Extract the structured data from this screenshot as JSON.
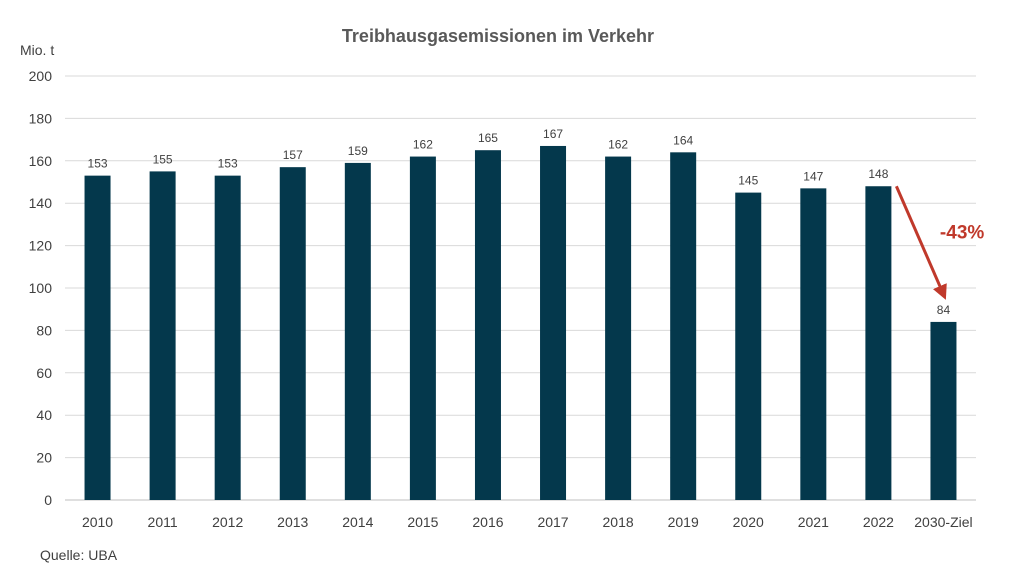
{
  "chart_data": {
    "type": "bar",
    "title": "Treibhausgasemissionen im Verkehr",
    "ylabel": "Mio. t",
    "xlabel": "",
    "categories": [
      "2010",
      "2011",
      "2012",
      "2013",
      "2014",
      "2015",
      "2016",
      "2017",
      "2018",
      "2019",
      "2020",
      "2021",
      "2022",
      "2030-Ziel"
    ],
    "values": [
      153,
      155,
      153,
      157,
      159,
      162,
      165,
      167,
      162,
      164,
      145,
      147,
      148,
      84
    ],
    "ylim": [
      0,
      200
    ],
    "yticks": [
      0,
      20,
      40,
      60,
      80,
      100,
      120,
      140,
      160,
      180,
      200
    ],
    "grid": true,
    "bar_color": "#04384c",
    "annotation": {
      "text": "-43%",
      "from_category": "2022",
      "to_category": "2030-Ziel",
      "color": "#c0392b"
    }
  },
  "source": "Quelle: UBA"
}
